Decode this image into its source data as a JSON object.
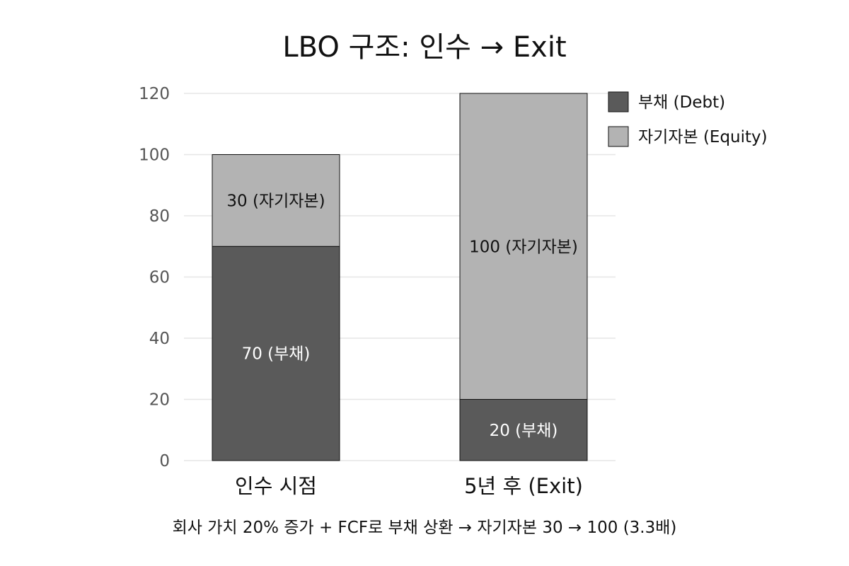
{
  "chart_data": {
    "type": "bar",
    "stacked": true,
    "title": "LBO 구조: 인수 → Exit",
    "categories": [
      "인수 시점",
      "5년 후 (Exit)"
    ],
    "series": [
      {
        "name": "부채 (Debt)",
        "color": "#5a5a5a",
        "values": [
          70,
          20
        ],
        "labels": [
          "70 (부채)",
          "20 (부채)"
        ],
        "label_color": "#ffffff"
      },
      {
        "name": "자기자본 (Equity)",
        "color": "#b3b3b3",
        "values": [
          30,
          100
        ],
        "labels": [
          "30 (자기자본)",
          "100 (자기자본)"
        ],
        "label_color": "#111111"
      }
    ],
    "ylim": [
      0,
      120
    ],
    "yticks": [
      "0",
      "20",
      "40",
      "60",
      "80",
      "100",
      "120"
    ],
    "grid": true,
    "legend_position": "top-right",
    "caption": "회사 가치 20% 증가 + FCF로 부채 상환 → 자기자본 30 → 100 (3.3배)"
  }
}
